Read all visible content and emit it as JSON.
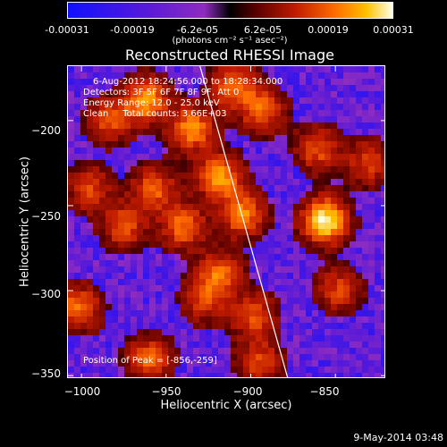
{
  "colorbar": {
    "ticks": [
      "-0.00031",
      "-0.00019",
      "-6.2e-05",
      "6.2e-05",
      "0.00019",
      "0.00031"
    ],
    "units": "(photons cm⁻² s⁻¹ asec⁻²)",
    "colors": [
      "#1010ff",
      "#5a1ad8",
      "#8e2cc0",
      "#000000",
      "#c01a00",
      "#ff6a00",
      "#ffc000",
      "#ffffe8"
    ]
  },
  "title": "Reconstructed RHESSI Image",
  "info_lines": [
    "6-Aug-2012 18:24:56.000 to 18:28:34.000",
    "Detectors: 3F 5F 6F 7F 8F 9F, Att 0",
    "Energy Range: 12.0 - 25.0 keV",
    "Clean     Total counts: 3.66E+03"
  ],
  "peak_text": "Position of Peak = [-856,-259]",
  "footer_date": "9-May-2014 03:48",
  "chart_data": {
    "type": "heatmap",
    "title": "Reconstructed RHESSI Image",
    "xlabel": "Heliocentric X (arcsec)",
    "ylabel": "Heliocentric Y (arcsec)",
    "xlim": [
      -1008,
      -820
    ],
    "ylim": [
      -352,
      -168
    ],
    "x_ticks": [
      -1000,
      -950,
      -900,
      -850
    ],
    "x_tick_labels": [
      "−1000",
      "−950",
      "−900",
      "−850"
    ],
    "y_ticks": [
      -350,
      -300,
      -250,
      -200
    ],
    "y_tick_labels": [
      "−350",
      "−300",
      "−250",
      "−200"
    ],
    "colorbar_range": [
      -0.00031,
      0.00031
    ],
    "limb_line": [
      [
        -930,
        -168
      ],
      [
        -878,
        -352
      ]
    ],
    "peak": [
      -856,
      -259
    ],
    "hotspots": [
      {
        "x": -856,
        "y": -259,
        "v": 1.0
      },
      {
        "x": -962,
        "y": -188,
        "v": 0.75
      },
      {
        "x": -935,
        "y": -205,
        "v": 0.7
      },
      {
        "x": -918,
        "y": -233,
        "v": 0.72
      },
      {
        "x": -905,
        "y": -255,
        "v": 0.65
      },
      {
        "x": -910,
        "y": -180,
        "v": 0.6
      },
      {
        "x": -893,
        "y": -194,
        "v": 0.55
      },
      {
        "x": -983,
        "y": -200,
        "v": 0.5
      },
      {
        "x": -957,
        "y": -240,
        "v": 0.55
      },
      {
        "x": -940,
        "y": -262,
        "v": 0.6
      },
      {
        "x": -975,
        "y": -262,
        "v": 0.5
      },
      {
        "x": -918,
        "y": -290,
        "v": 0.55
      },
      {
        "x": -860,
        "y": -217,
        "v": 0.5
      },
      {
        "x": -848,
        "y": -300,
        "v": 0.45
      },
      {
        "x": -898,
        "y": -315,
        "v": 0.5
      },
      {
        "x": -927,
        "y": -305,
        "v": 0.45
      },
      {
        "x": -1002,
        "y": -310,
        "v": 0.6
      },
      {
        "x": -960,
        "y": -340,
        "v": 0.55
      },
      {
        "x": -895,
        "y": -342,
        "v": 0.45
      },
      {
        "x": -830,
        "y": -225,
        "v": 0.45
      },
      {
        "x": -995,
        "y": -240,
        "v": 0.45
      }
    ]
  }
}
